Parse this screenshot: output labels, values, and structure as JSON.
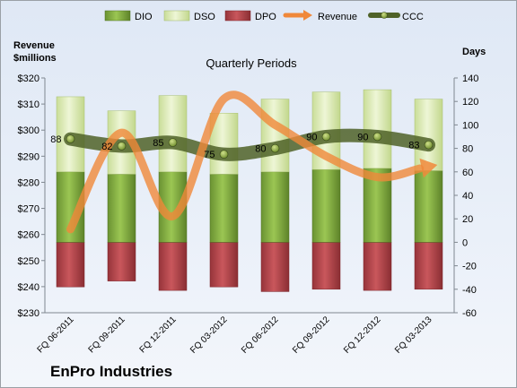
{
  "company": "EnPro Industries",
  "chart_data": {
    "type": "bar",
    "title": "Quarterly Periods",
    "left_axis": {
      "label_line1": "Revenue",
      "label_line2": "$millions",
      "range": [
        230,
        320
      ],
      "ticks": [
        "$230",
        "$240",
        "$250",
        "$260",
        "$270",
        "$280",
        "$290",
        "$300",
        "$310",
        "$320"
      ]
    },
    "right_axis": {
      "label": "Days",
      "range": [
        -60,
        140
      ],
      "ticks": [
        "-60",
        "-40",
        "-20",
        "0",
        "20",
        "40",
        "60",
        "80",
        "100",
        "120",
        "140"
      ]
    },
    "categories": [
      "FQ 06-2011",
      "FQ 09-2011",
      "FQ 12-2011",
      "FQ 03-2012",
      "FQ 06-2012",
      "FQ 09-2012",
      "FQ 12-2012",
      "FQ 03-2013"
    ],
    "legend": [
      "DIO",
      "DSO",
      "DPO",
      "Revenue",
      "CCC"
    ],
    "legend_position": "top",
    "colors": {
      "DIO": "#7fa83c",
      "DSO": "#d6e8a8",
      "DPO": "#b0454a",
      "Revenue": "#f0883a",
      "CCC": "#4f6228"
    },
    "series": [
      {
        "name": "DIO",
        "axis": "right",
        "values": [
          60,
          58,
          60,
          58,
          60,
          62,
          63,
          61
        ]
      },
      {
        "name": "DSO",
        "axis": "right",
        "values": [
          124,
          112,
          125,
          110,
          122,
          128,
          130,
          122
        ]
      },
      {
        "name": "DPO",
        "axis": "right",
        "values": [
          -38,
          -33,
          -41,
          -38,
          -42,
          -40,
          -41,
          -40
        ]
      },
      {
        "name": "Revenue",
        "axis": "left",
        "values": [
          262,
          299,
          267,
          312,
          302,
          290,
          282,
          286
        ]
      },
      {
        "name": "CCC",
        "axis": "right",
        "values": [
          88,
          82,
          85,
          75,
          80,
          90,
          90,
          83
        ]
      }
    ],
    "ccc_labels": [
      "88",
      "82",
      "85",
      "75",
      "80",
      "90",
      "90",
      "83"
    ]
  }
}
